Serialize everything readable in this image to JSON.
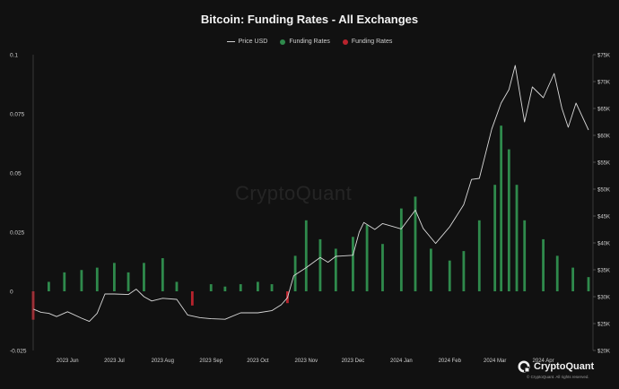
{
  "chart_data": {
    "type": "bar",
    "title": "Bitcoin: Funding Rates - All Exchanges",
    "legend_position": "top",
    "grid": false,
    "y_left": {
      "ylim": [
        -0.025,
        0.1
      ],
      "ticks": [
        "0.1",
        "0.075",
        "0.05",
        "0.025",
        "0",
        "-0.025"
      ],
      "tick_values": [
        0.1,
        0.075,
        0.05,
        0.025,
        0,
        -0.025
      ]
    },
    "y_right": {
      "ylim": [
        20000,
        75000
      ],
      "ticks": [
        "$75K",
        "$70K",
        "$65K",
        "$60K",
        "$55K",
        "$50K",
        "$45K",
        "$40K",
        "$35K",
        "$30K",
        "$25K",
        "$20K"
      ],
      "tick_values": [
        75000,
        70000,
        65000,
        60000,
        55000,
        50000,
        45000,
        40000,
        35000,
        30000,
        25000,
        20000
      ]
    },
    "x_ticks": [
      "2023 Jun",
      "2023 Jul",
      "2023 Aug",
      "2023 Sep",
      "2023 Oct",
      "2023 Nov",
      "2023 Dec",
      "2024 Jan",
      "2024 Feb",
      "2024 Mar",
      "2024 Apr"
    ],
    "x_tick_dates": [
      "2023-06-01",
      "2023-07-01",
      "2023-08-01",
      "2023-09-01",
      "2023-10-01",
      "2023-11-01",
      "2023-12-01",
      "2024-01-01",
      "2024-02-01",
      "2024-03-01",
      "2024-04-01"
    ],
    "x_range": [
      "2023-05-10",
      "2024-04-30"
    ],
    "series": [
      {
        "name": "Price USD",
        "type": "line",
        "axis": "right",
        "color": "#d9d9d9",
        "x": [
          "2023-05-10",
          "2023-05-15",
          "2023-05-20",
          "2023-05-25",
          "2023-06-01",
          "2023-06-10",
          "2023-06-15",
          "2023-06-20",
          "2023-06-25",
          "2023-07-01",
          "2023-07-10",
          "2023-07-15",
          "2023-07-20",
          "2023-07-25",
          "2023-08-01",
          "2023-08-10",
          "2023-08-17",
          "2023-08-25",
          "2023-09-01",
          "2023-09-10",
          "2023-09-20",
          "2023-10-01",
          "2023-10-10",
          "2023-10-16",
          "2023-10-20",
          "2023-10-24",
          "2023-11-01",
          "2023-11-10",
          "2023-11-15",
          "2023-11-20",
          "2023-12-01",
          "2023-12-05",
          "2023-12-08",
          "2023-12-15",
          "2023-12-20",
          "2024-01-01",
          "2024-01-10",
          "2024-01-15",
          "2024-01-23",
          "2024-02-01",
          "2024-02-10",
          "2024-02-15",
          "2024-02-20",
          "2024-02-28",
          "2024-03-05",
          "2024-03-10",
          "2024-03-14",
          "2024-03-20",
          "2024-03-25",
          "2024-04-01",
          "2024-04-08",
          "2024-04-13",
          "2024-04-17",
          "2024-04-22",
          "2024-04-30"
        ],
        "values": [
          27700,
          27100,
          26900,
          26300,
          27200,
          26000,
          25400,
          26900,
          30500,
          30500,
          30400,
          31400,
          30000,
          29200,
          29700,
          29500,
          26600,
          26100,
          25900,
          25800,
          27000,
          27000,
          27400,
          28500,
          29800,
          33900,
          35400,
          37300,
          36400,
          37500,
          37700,
          42000,
          43800,
          42500,
          43600,
          42600,
          46100,
          42700,
          39900,
          43000,
          47100,
          51800,
          52000,
          61200,
          66000,
          68500,
          73000,
          62500,
          69000,
          67000,
          71500,
          65000,
          61500,
          66000,
          61000
        ]
      },
      {
        "name": "Funding Rates",
        "type": "bar",
        "axis": "left",
        "color_positive": "#2f8a4c",
        "color_negative": "#b8232d",
        "x": [
          "2023-05-10",
          "2023-05-20",
          "2023-05-30",
          "2023-06-10",
          "2023-06-20",
          "2023-07-01",
          "2023-07-10",
          "2023-07-20",
          "2023-08-01",
          "2023-08-10",
          "2023-08-20",
          "2023-09-01",
          "2023-09-10",
          "2023-09-20",
          "2023-10-01",
          "2023-10-10",
          "2023-10-20",
          "2023-10-25",
          "2023-11-01",
          "2023-11-10",
          "2023-11-20",
          "2023-12-01",
          "2023-12-10",
          "2023-12-20",
          "2024-01-01",
          "2024-01-10",
          "2024-01-20",
          "2024-02-01",
          "2024-02-10",
          "2024-02-20",
          "2024-03-01",
          "2024-03-05",
          "2024-03-10",
          "2024-03-15",
          "2024-03-20",
          "2024-04-01",
          "2024-04-10",
          "2024-04-20",
          "2024-04-30"
        ],
        "values": [
          -0.012,
          0.004,
          0.008,
          0.009,
          0.01,
          0.012,
          0.008,
          0.012,
          0.014,
          0.004,
          -0.006,
          0.003,
          0.002,
          0.003,
          0.004,
          0.003,
          -0.005,
          0.015,
          0.03,
          0.022,
          0.018,
          0.023,
          0.028,
          0.02,
          0.035,
          0.04,
          0.018,
          0.013,
          0.017,
          0.03,
          0.045,
          0.07,
          0.06,
          0.045,
          0.03,
          0.022,
          0.015,
          0.01,
          0.006
        ]
      }
    ]
  },
  "legend": {
    "price_label": "Price USD",
    "funding_positive_label": "Funding Rates",
    "funding_negative_label": "Funding Rates",
    "positive_color": "#2f8a4c",
    "negative_color": "#b8232d"
  },
  "brand": {
    "name": "CryptoQuant",
    "note": "© CryptoQuant. All rights reserved.",
    "icon": "cryptoquant-logo-icon",
    "watermark": "CryptoQuant"
  }
}
